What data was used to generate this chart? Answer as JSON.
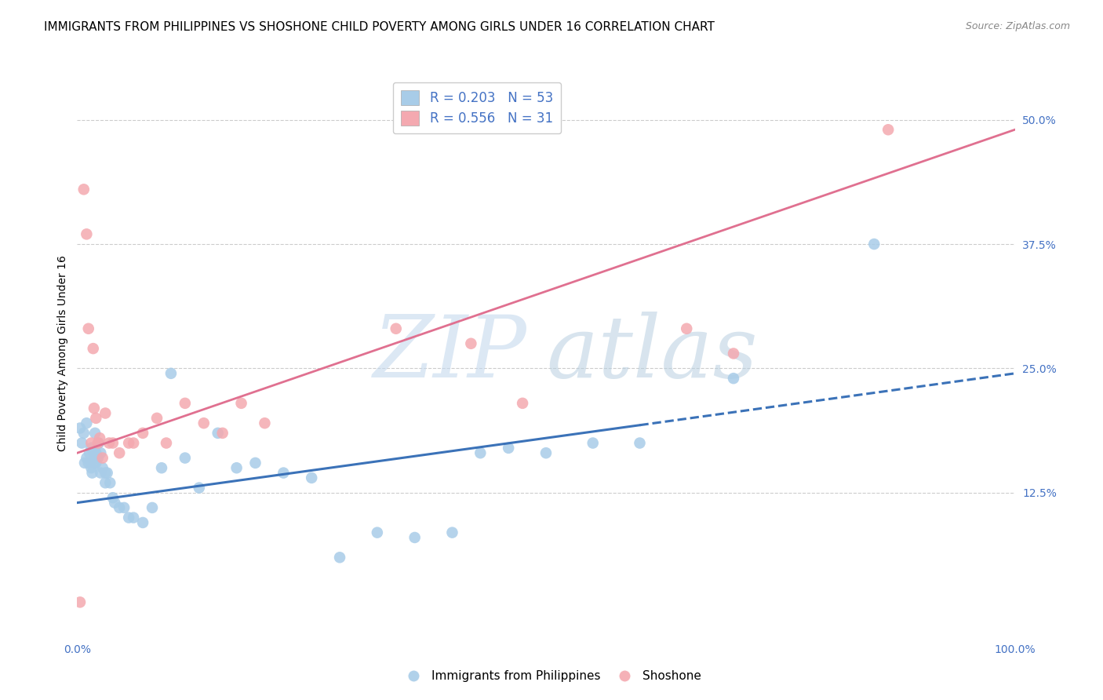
{
  "title": "IMMIGRANTS FROM PHILIPPINES VS SHOSHONE CHILD POVERTY AMONG GIRLS UNDER 16 CORRELATION CHART",
  "source": "Source: ZipAtlas.com",
  "ylabel": "Child Poverty Among Girls Under 16",
  "xlim": [
    0.0,
    1.0
  ],
  "ylim": [
    -0.02,
    0.55
  ],
  "xticks": [
    0.0,
    0.25,
    0.5,
    0.75,
    1.0
  ],
  "xticklabels": [
    "0.0%",
    "",
    "",
    "",
    "100.0%"
  ],
  "yticks": [
    0.125,
    0.25,
    0.375,
    0.5
  ],
  "yticklabels": [
    "12.5%",
    "25.0%",
    "37.5%",
    "50.0%"
  ],
  "watermark_zip": "ZIP",
  "watermark_atlas": "atlas",
  "legend_text_line1": "R = 0.203   N = 53",
  "legend_text_line2": "R = 0.556   N = 31",
  "legend_label_blue": "Immigrants from Philippines",
  "legend_label_pink": "Shoshone",
  "blue_scatter_color": "#a8cce8",
  "pink_scatter_color": "#f4a9b0",
  "blue_line_color": "#3b72b8",
  "pink_line_color": "#e07090",
  "blue_line_solid_end": 0.6,
  "blue_line_y_start": 0.115,
  "blue_line_y_end": 0.245,
  "pink_line_y_start": 0.165,
  "pink_line_y_end": 0.49,
  "blue_scatter_x": [
    0.003,
    0.005,
    0.007,
    0.008,
    0.01,
    0.01,
    0.012,
    0.013,
    0.015,
    0.015,
    0.016,
    0.018,
    0.018,
    0.019,
    0.02,
    0.02,
    0.022,
    0.023,
    0.025,
    0.025,
    0.027,
    0.03,
    0.03,
    0.032,
    0.035,
    0.038,
    0.04,
    0.045,
    0.05,
    0.055,
    0.06,
    0.07,
    0.08,
    0.09,
    0.1,
    0.115,
    0.13,
    0.15,
    0.17,
    0.19,
    0.22,
    0.25,
    0.28,
    0.32,
    0.36,
    0.4,
    0.43,
    0.46,
    0.5,
    0.55,
    0.6,
    0.7,
    0.85
  ],
  "blue_scatter_y": [
    0.19,
    0.175,
    0.185,
    0.155,
    0.16,
    0.195,
    0.155,
    0.165,
    0.15,
    0.17,
    0.145,
    0.165,
    0.155,
    0.185,
    0.155,
    0.165,
    0.16,
    0.175,
    0.145,
    0.165,
    0.15,
    0.135,
    0.145,
    0.145,
    0.135,
    0.12,
    0.115,
    0.11,
    0.11,
    0.1,
    0.1,
    0.095,
    0.11,
    0.15,
    0.245,
    0.16,
    0.13,
    0.185,
    0.15,
    0.155,
    0.145,
    0.14,
    0.06,
    0.085,
    0.08,
    0.085,
    0.165,
    0.17,
    0.165,
    0.175,
    0.175,
    0.24,
    0.375
  ],
  "pink_scatter_x": [
    0.003,
    0.007,
    0.01,
    0.012,
    0.015,
    0.017,
    0.018,
    0.02,
    0.022,
    0.024,
    0.027,
    0.03,
    0.034,
    0.038,
    0.045,
    0.055,
    0.06,
    0.07,
    0.085,
    0.095,
    0.115,
    0.135,
    0.155,
    0.175,
    0.2,
    0.34,
    0.42,
    0.475,
    0.65,
    0.7,
    0.865
  ],
  "pink_scatter_y": [
    0.015,
    0.43,
    0.385,
    0.29,
    0.175,
    0.27,
    0.21,
    0.2,
    0.175,
    0.18,
    0.16,
    0.205,
    0.175,
    0.175,
    0.165,
    0.175,
    0.175,
    0.185,
    0.2,
    0.175,
    0.215,
    0.195,
    0.185,
    0.215,
    0.195,
    0.29,
    0.275,
    0.215,
    0.29,
    0.265,
    0.49
  ],
  "background_color": "#ffffff",
  "grid_color": "#cccccc",
  "title_fontsize": 11,
  "axis_label_fontsize": 10,
  "tick_color": "#4472c4",
  "tick_fontsize": 10,
  "legend_fontsize": 11
}
